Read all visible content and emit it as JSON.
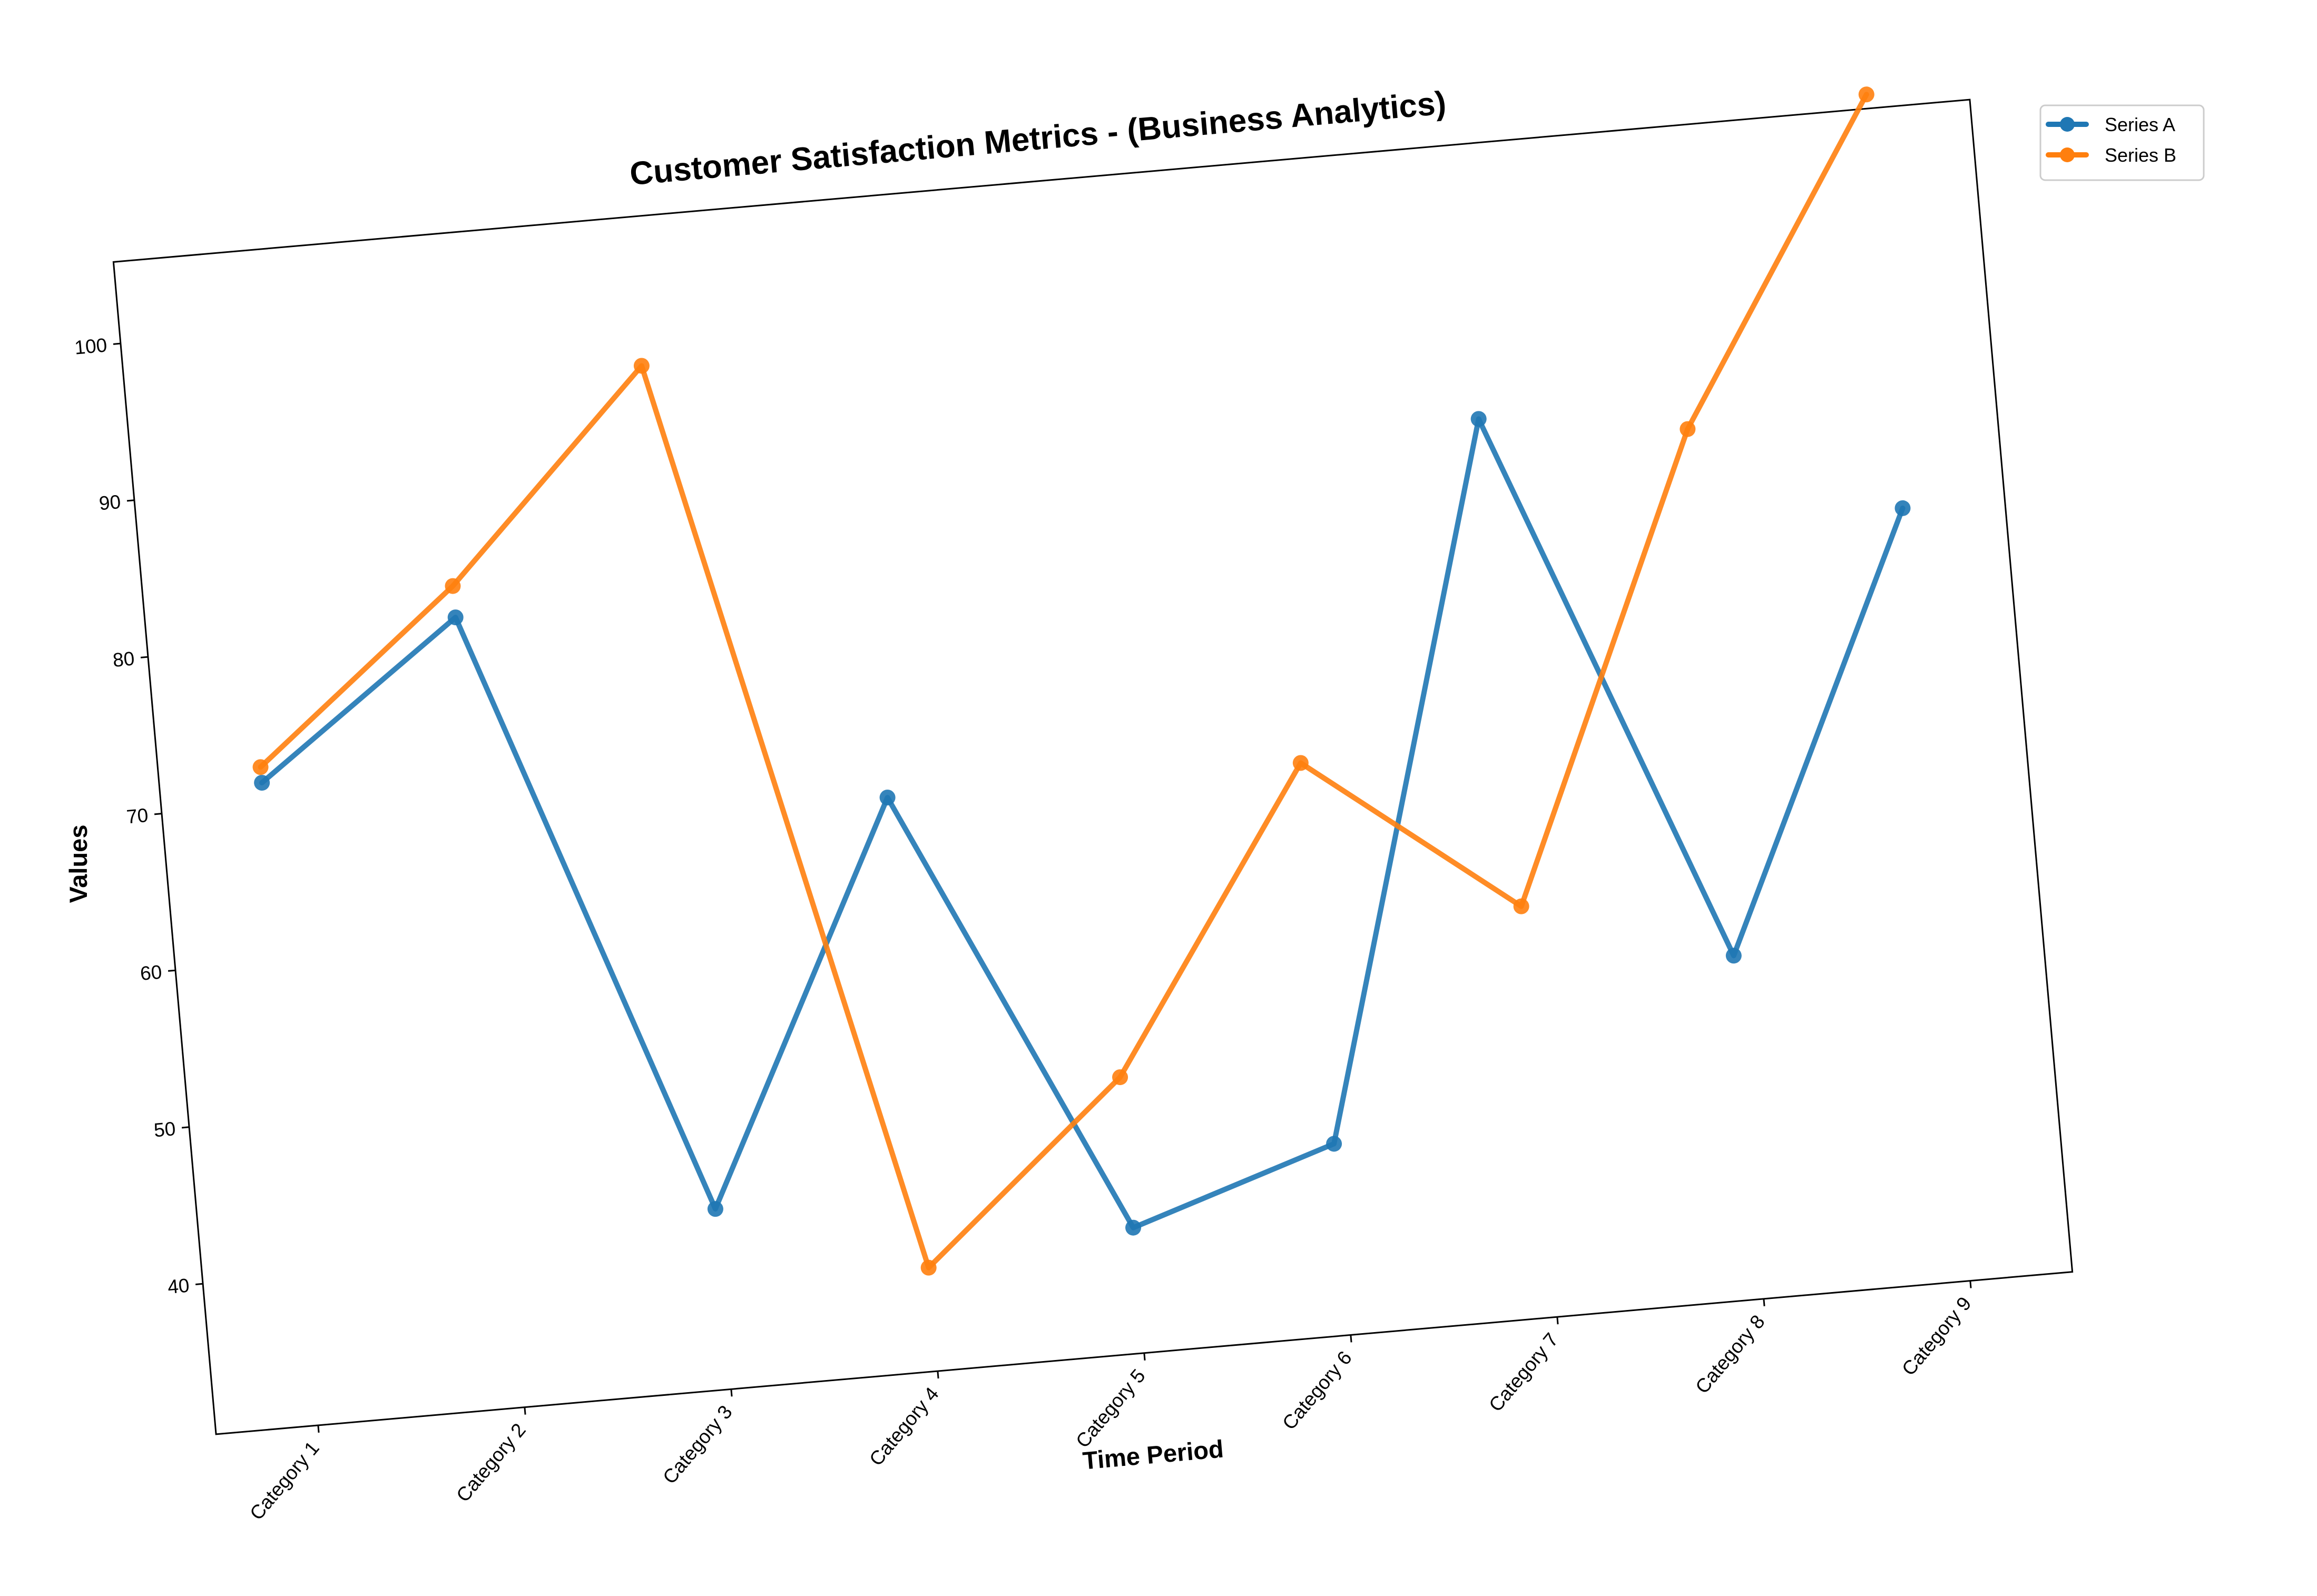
{
  "chart_data": {
    "type": "line",
    "title": "Customer Satisfaction Metrics - (Business Analytics)",
    "xlabel": "Time Period",
    "ylabel": "Values",
    "categories": [
      "Category 1",
      "Category 2",
      "Category 3",
      "Category 4",
      "Category 5",
      "Category 6",
      "Category 7",
      "Category 8",
      "Category 9"
    ],
    "y_ticks": [
      40,
      50,
      60,
      70,
      80,
      90,
      100
    ],
    "ylim": [
      30.4,
      105.2
    ],
    "grid": false,
    "legend": "upper-right, outside plot",
    "series": [
      {
        "name": "Series A",
        "color": "#1f77b4",
        "values": [
          71.4,
          80.8,
          41.9,
          67.0,
          38.4,
          42.6,
          87.7,
          52.3,
          79.7
        ]
      },
      {
        "name": "Series B",
        "color": "#ff7f0e",
        "values": [
          72.4,
          82.8,
          95.7,
          37.0,
          48.0,
          66.9,
          56.6,
          85.9,
          106.1
        ]
      }
    ]
  }
}
